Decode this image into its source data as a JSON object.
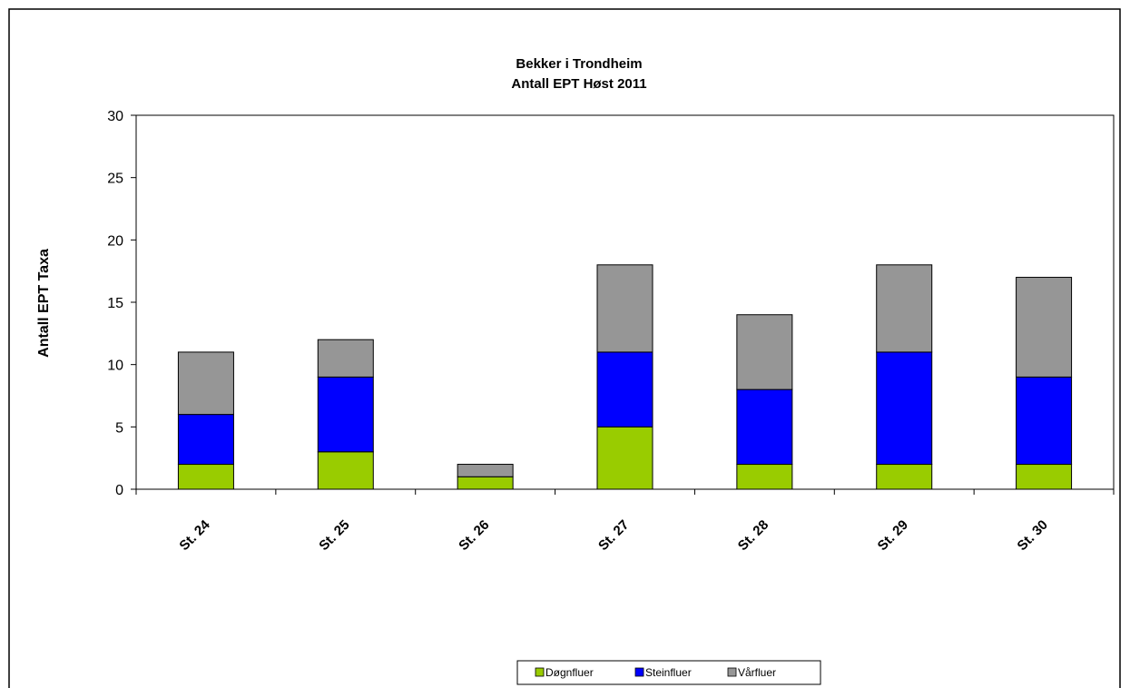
{
  "chart_data": {
    "type": "bar",
    "stacked": true,
    "title": "Bekker i Trondheim",
    "subtitle": "Antall EPT Høst 2011",
    "xlabel": "",
    "ylabel": "Antall EPT Taxa",
    "ylim": [
      0,
      30
    ],
    "yticks": [
      0,
      5,
      10,
      15,
      20,
      25,
      30
    ],
    "grid": false,
    "legend_position": "bottom",
    "categories": [
      "St. 24",
      "St. 25",
      "St. 26",
      "St. 27",
      "St. 28",
      "St. 29",
      "St. 30"
    ],
    "series": [
      {
        "name": "Døgnfluer",
        "color": "#99CC00",
        "values": [
          2,
          3,
          1,
          5,
          2,
          2,
          2
        ]
      },
      {
        "name": "Steinfluer",
        "color": "#0000FF",
        "values": [
          4,
          6,
          0,
          6,
          6,
          9,
          7
        ]
      },
      {
        "name": "Vårfluer",
        "color": "#969696",
        "values": [
          5,
          3,
          1,
          7,
          6,
          7,
          8
        ]
      }
    ]
  }
}
